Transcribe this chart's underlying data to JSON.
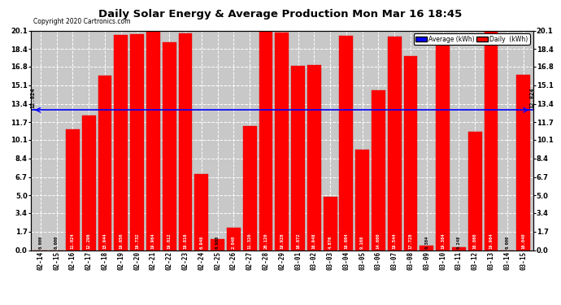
{
  "title": "Daily Solar Energy & Average Production Mon Mar 16 18:45",
  "copyright": "Copyright 2020 Cartronics.com",
  "average_value": 12.824,
  "bar_color": "#FF0000",
  "average_line_color": "#0000FF",
  "background_color": "#FFFFFF",
  "plot_bg_color": "#C8C8C8",
  "categories": [
    "02-14",
    "02-15",
    "02-16",
    "02-17",
    "02-18",
    "02-19",
    "02-20",
    "02-21",
    "02-22",
    "02-23",
    "02-24",
    "02-25",
    "02-26",
    "02-27",
    "02-28",
    "02-29",
    "03-01",
    "03-02",
    "03-03",
    "03-04",
    "03-05",
    "03-06",
    "03-07",
    "03-08",
    "03-09",
    "03-10",
    "03-11",
    "03-12",
    "03-13",
    "03-14",
    "03-15"
  ],
  "values": [
    0.0,
    0.0,
    11.024,
    12.296,
    15.944,
    19.656,
    19.732,
    19.964,
    19.012,
    19.816,
    6.948,
    0.968,
    2.04,
    11.32,
    20.12,
    19.928,
    16.872,
    16.948,
    4.876,
    19.604,
    9.168,
    14.6,
    19.544,
    17.728,
    0.384,
    19.384,
    0.248,
    10.86,
    19.964,
    0.0,
    16.04
  ],
  "ylim": [
    0.0,
    20.1
  ],
  "yticks": [
    0.0,
    1.7,
    3.4,
    5.0,
    6.7,
    8.4,
    10.1,
    11.7,
    13.4,
    15.1,
    16.8,
    18.4,
    20.1
  ],
  "legend_avg_color": "#0000FF",
  "legend_daily_color": "#FF0000",
  "legend_avg_label": "Average (kWh)",
  "legend_daily_label": "Daily  (kWh)"
}
